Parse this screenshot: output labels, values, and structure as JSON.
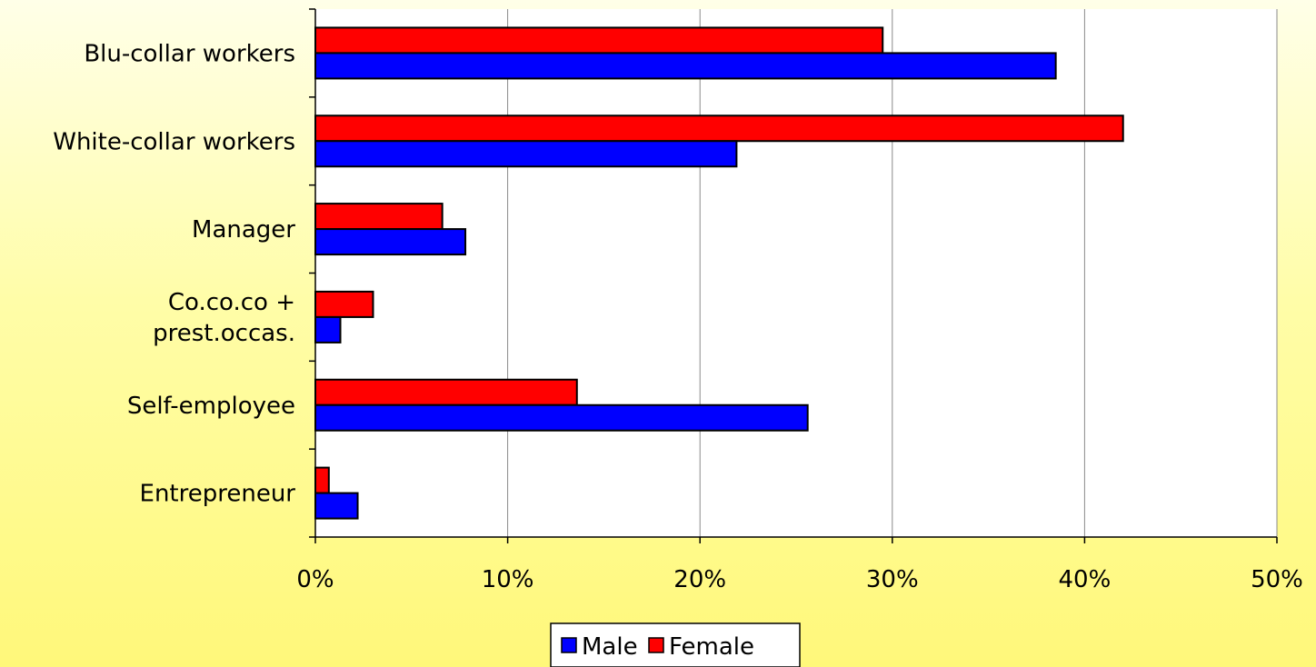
{
  "chart_data": {
    "type": "bar",
    "orientation": "horizontal",
    "categories": [
      "Blu-collar workers",
      "White-collar workers",
      "Manager",
      "Co.co.co +\nprest.occas.",
      "Self-employee",
      "Entrepreneur"
    ],
    "series": [
      {
        "name": "Male",
        "color": "#0000ff",
        "values": [
          38.5,
          21.9,
          7.8,
          1.3,
          25.6,
          2.2
        ]
      },
      {
        "name": "Female",
        "color": "#ff0000",
        "values": [
          29.5,
          42.0,
          6.6,
          3.0,
          13.6,
          0.7
        ]
      }
    ],
    "xlim": [
      0,
      50
    ],
    "ticks": [
      0,
      10,
      20,
      30,
      40,
      50
    ],
    "tick_labels": [
      "0%",
      "10%",
      "20%",
      "30%",
      "40%",
      "50%"
    ],
    "grid": true,
    "legend_position": "bottom-center",
    "title": "",
    "xlabel": "",
    "ylabel": ""
  }
}
